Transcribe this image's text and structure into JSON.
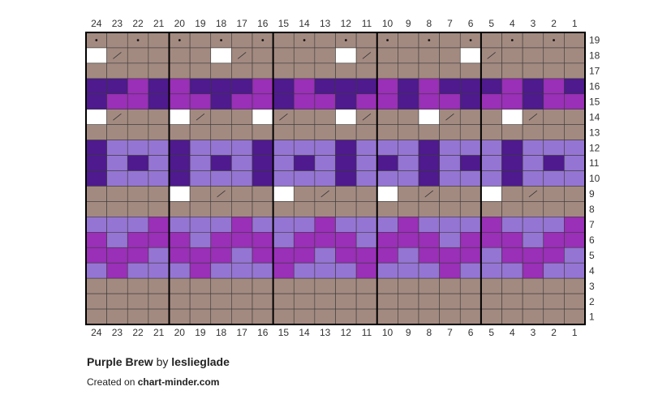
{
  "columns": [
    24,
    23,
    22,
    21,
    20,
    19,
    18,
    17,
    16,
    15,
    14,
    13,
    12,
    11,
    10,
    9,
    8,
    7,
    6,
    5,
    4,
    3,
    2,
    1
  ],
  "palette": {
    "B": "#a38a80",
    "W": "#ffffff",
    "D": "#4e1a8e",
    "M": "#9a2fb8",
    "L": "#9575d3"
  },
  "rows": [
    {
      "number": 19,
      "cells": "BBBBBBBBBBBBBBBBBBBBBBBB",
      "symbols": "o-o-o-o-o-o-o-o-o-o-o-o-"
    },
    {
      "number": 18,
      "cells": "WBBBBBWBBBBBWBBBBBWBBBBB",
      "symbols": "-/-----/-----/-----/----"
    },
    {
      "number": 17,
      "cells": "BBBBBBBBBBBBBBBBBBBBBBBB",
      "symbols": "------------------------"
    },
    {
      "number": 16,
      "cells": "DDMDMDDDMDMDDDMDMDDDMDMD",
      "symbols": "------------------------"
    },
    {
      "number": 15,
      "cells": "DMMDMMDMMDMMDMMDMMDMMDMM",
      "symbols": "------------------------"
    },
    {
      "number": 14,
      "cells": "WBBBWBBBWBBBWBBBWBBBWBBB",
      "symbols": "-/---/---/---/---/---/--"
    },
    {
      "number": 13,
      "cells": "BBBBBBBBBBBBBBBBBBBBBBBB",
      "symbols": "------------------------"
    },
    {
      "number": 12,
      "cells": "DLLLDLLLDLLLDLLLDLLLDLLL",
      "symbols": "------------------------"
    },
    {
      "number": 11,
      "cells": "DLDLDLDLDLDLDLDLDLDLDLDL",
      "symbols": "------------------------"
    },
    {
      "number": 10,
      "cells": "DLLLDLLLDLLLDLLLDLLLDLLL",
      "symbols": "------------------------"
    },
    {
      "number": 9,
      "cells": "BBBBWBBBBWBBBBWBBBBWBBBB",
      "symbols": "------/----/----/----/--"
    },
    {
      "number": 8,
      "cells": "BBBBBBBBBBBBBBBBBBBBBBBB",
      "symbols": "------------------------"
    },
    {
      "number": 7,
      "cells": "LLLMLLLMLLLMLLLMLLLMLLLM",
      "symbols": "------------------------"
    },
    {
      "number": 6,
      "cells": "MLMMMLMMMLMMMLMMMLMMMLMM",
      "symbols": "------------------------"
    },
    {
      "number": 5,
      "cells": "MMMLMMMLMMMLMMMLMMMLMMML",
      "symbols": "------------------------"
    },
    {
      "number": 4,
      "cells": "LMLLLMLLLMLLLMLLLMLLLMLL",
      "symbols": "------------------------"
    },
    {
      "number": 3,
      "cells": "BBBBBBBBBBBBBBBBBBBBBBBB",
      "symbols": "------------------------"
    },
    {
      "number": 2,
      "cells": "BBBBBBBBBBBBBBBBBBBBBBBB",
      "symbols": "------------------------"
    },
    {
      "number": 1,
      "cells": "BBBBBBBBBBBBBBBBBBBBBBBB",
      "symbols": "------------------------"
    }
  ],
  "footer": {
    "title": "Purple Brew",
    "by": "by",
    "author": "leslieglade",
    "created": "Created on",
    "site": "chart-minder.com"
  }
}
